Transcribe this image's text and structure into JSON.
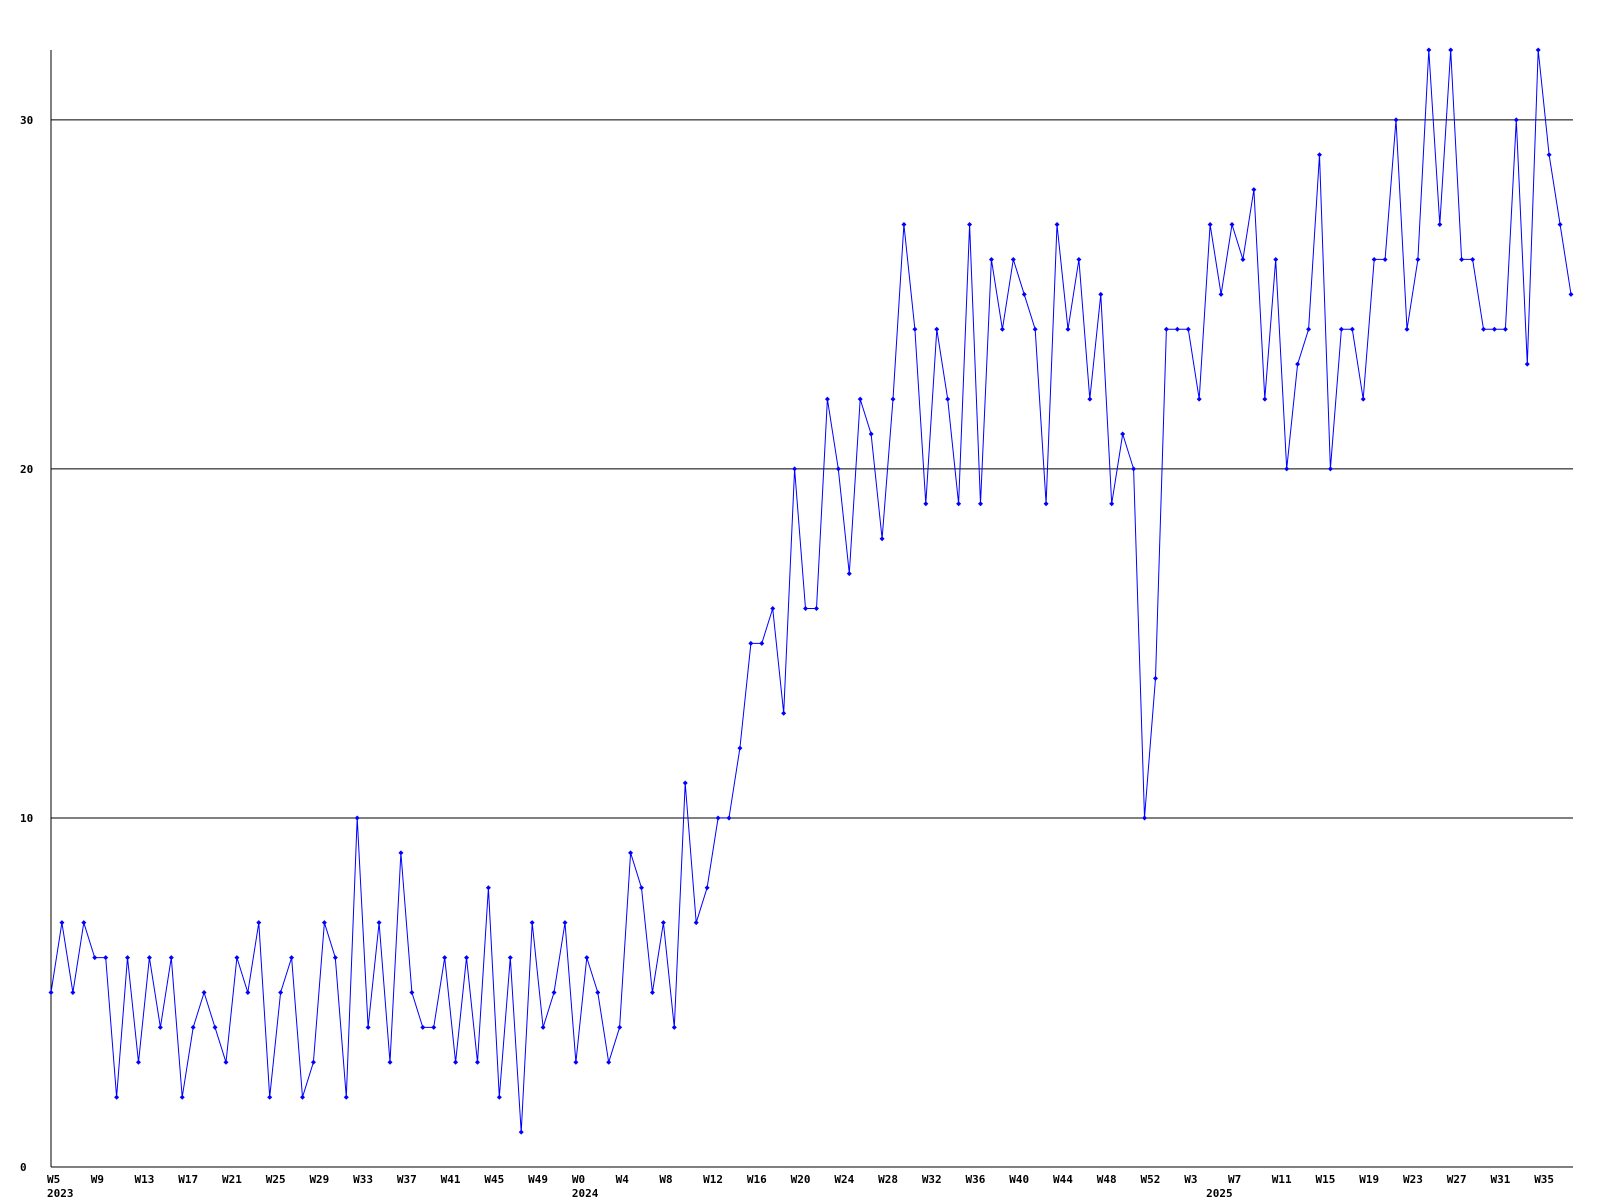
{
  "chart_data": {
    "type": "line",
    "categories": [
      "W5",
      null,
      null,
      null,
      "W9",
      null,
      null,
      null,
      "W13",
      null,
      null,
      null,
      "W17",
      null,
      null,
      null,
      "W21",
      null,
      null,
      null,
      "W25",
      null,
      null,
      null,
      "W29",
      null,
      null,
      null,
      "W33",
      null,
      null,
      null,
      "W37",
      null,
      null,
      null,
      "W41",
      null,
      null,
      null,
      "W45",
      null,
      null,
      null,
      "W49",
      null,
      null,
      null,
      "W0",
      null,
      null,
      null,
      "W4",
      null,
      null,
      null,
      "W8",
      null,
      null,
      null,
      "W12",
      null,
      null,
      null,
      "W16",
      null,
      null,
      null,
      "W20",
      null,
      null,
      null,
      "W24",
      null,
      null,
      null,
      "W28",
      null,
      null,
      null,
      "W32",
      null,
      null,
      null,
      "W36",
      null,
      null,
      null,
      "W40",
      null,
      null,
      null,
      "W44",
      null,
      null,
      null,
      "W48",
      null,
      null,
      null,
      "W52",
      null,
      null,
      null,
      "W3",
      null,
      null,
      null,
      "W7",
      null,
      null,
      null,
      "W11",
      null,
      null,
      null,
      "W15",
      null,
      null,
      null,
      "W19",
      null,
      null,
      null,
      "W23",
      null,
      null,
      null,
      "W27",
      null,
      null,
      null,
      "W31",
      null,
      null,
      null,
      "W35",
      null,
      null,
      null
    ],
    "years": [
      "2023",
      null,
      null,
      null,
      null,
      null,
      null,
      null,
      null,
      null,
      null,
      null,
      null,
      null,
      null,
      null,
      null,
      null,
      null,
      null,
      null,
      null,
      null,
      null,
      null,
      null,
      null,
      null,
      null,
      null,
      null,
      null,
      null,
      null,
      null,
      null,
      null,
      null,
      null,
      null,
      null,
      null,
      null,
      null,
      null,
      null,
      null,
      null,
      "2024",
      null,
      null,
      null,
      null,
      null,
      null,
      null,
      null,
      null,
      null,
      null,
      null,
      null,
      null,
      null,
      null,
      null,
      null,
      null,
      null,
      null,
      null,
      null,
      null,
      null,
      null,
      null,
      null,
      null,
      null,
      null,
      null,
      null,
      null,
      null,
      null,
      null,
      null,
      null,
      null,
      null,
      null,
      null,
      null,
      null,
      null,
      null,
      null,
      null,
      null,
      null,
      null,
      null,
      null,
      null,
      null,
      null,
      "2025",
      null,
      null,
      null,
      null,
      null,
      null,
      null,
      null,
      null,
      null,
      null,
      null,
      null,
      null,
      null,
      null,
      null,
      null,
      null,
      null,
      null,
      null,
      null,
      null,
      null,
      null,
      null,
      null,
      null,
      null,
      null,
      null,
      null,
      null
    ],
    "series": [
      {
        "color": "#0000ff",
        "values": [
          5,
          7,
          5,
          7,
          6,
          6,
          2,
          6,
          3,
          6,
          4,
          6,
          2,
          4,
          5,
          4,
          3,
          6,
          5,
          7,
          2,
          5,
          6,
          2,
          3,
          7,
          6,
          2,
          10,
          4,
          7,
          3,
          9,
          5,
          4,
          4,
          6,
          3,
          6,
          3,
          8,
          2,
          6,
          1,
          7,
          4,
          5,
          7,
          3,
          6,
          5,
          3,
          4,
          9,
          8,
          5,
          7,
          4,
          11,
          7,
          8,
          10,
          10,
          12,
          15,
          15,
          16,
          13,
          20,
          16,
          16,
          22,
          20,
          17,
          22,
          21,
          18,
          22,
          27,
          24,
          19,
          24,
          22,
          19,
          27,
          19,
          26,
          24,
          26,
          25,
          24,
          19,
          27,
          24,
          26,
          22,
          25,
          19,
          21,
          20,
          10,
          14,
          24,
          24,
          24,
          22,
          27,
          25,
          27,
          26,
          28,
          22,
          26,
          20,
          23,
          24,
          29,
          20,
          24,
          24,
          22,
          26,
          26,
          30,
          24,
          26,
          32,
          27,
          32,
          26,
          26,
          24,
          24,
          24,
          30,
          23,
          32,
          29,
          27,
          25
        ]
      }
    ],
    "ylim": [
      0,
      32
    ],
    "yticks": [
      0,
      10,
      20,
      30
    ],
    "grid": true
  }
}
